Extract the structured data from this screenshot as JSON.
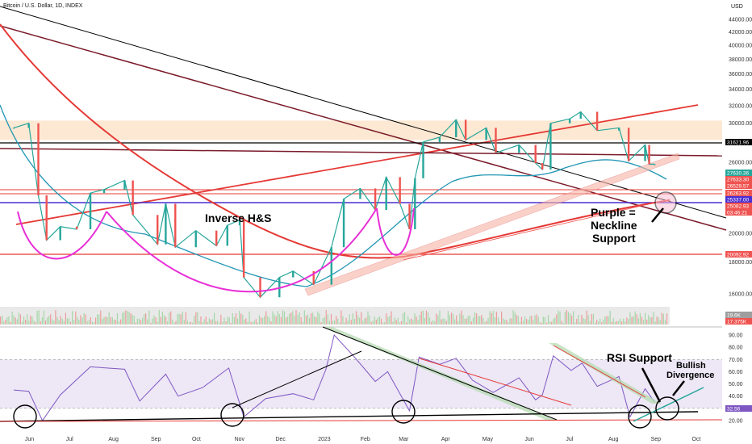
{
  "header": {
    "title": "Bitcoin / U.S. Dollar, 1D, INDEX",
    "currency": "USD"
  },
  "chart_data": {
    "type": "line",
    "title": "Bitcoin / U.S. Dollar, 1D, INDEX",
    "price_ticks": [
      44000,
      42000,
      40000,
      38000,
      36000,
      34000,
      32000,
      30000,
      28000,
      26000,
      24000,
      22000,
      20000,
      18000,
      16000
    ],
    "price_tick_labels": [
      "44000.00",
      "42000.00",
      "40000.00",
      "38000.00",
      "36000.00",
      "34000.00",
      "32000.00",
      "30000.00",
      "28000.00",
      "26000.00",
      "24000.00",
      "22000.00",
      "20000.00",
      "18000.00",
      "16000.00"
    ],
    "rsi_ticks": [
      90,
      80,
      70,
      60,
      50,
      40,
      20
    ],
    "rsi_tick_labels": [
      "90.00",
      "80.00",
      "70.00",
      "60.00",
      "50.00",
      "40.00",
      "20.00"
    ],
    "x_labels": [
      "Jun",
      "Jul",
      "Aug",
      "Sep",
      "Oct",
      "Nov",
      "Dec",
      "2023",
      "Feb",
      "Mar",
      "Apr",
      "May",
      "Jun",
      "Jul",
      "Aug",
      "Sep",
      "Oct"
    ],
    "ylim": [
      14000,
      45500
    ],
    "rsi_ylim": [
      15,
      95
    ],
    "series": [
      {
        "values": [
          {
            "d": "2022-05-25",
            "v": 29500
          },
          {
            "d": "2022-06-05",
            "v": 30000
          },
          {
            "d": "2022-06-12",
            "v": 23000
          },
          {
            "d": "2022-06-18",
            "v": 19500
          },
          {
            "d": "2022-06-28",
            "v": 20500
          },
          {
            "d": "2022-07-10",
            "v": 20300
          },
          {
            "d": "2022-07-20",
            "v": 23200
          },
          {
            "d": "2022-07-30",
            "v": 23500
          },
          {
            "d": "2022-08-14",
            "v": 24300
          },
          {
            "d": "2022-08-20",
            "v": 21400
          },
          {
            "d": "2022-09-07",
            "v": 19200
          },
          {
            "d": "2022-09-13",
            "v": 22300
          },
          {
            "d": "2022-09-20",
            "v": 19000
          },
          {
            "d": "2022-10-05",
            "v": 20200
          },
          {
            "d": "2022-10-20",
            "v": 19100
          },
          {
            "d": "2022-10-28",
            "v": 20600
          },
          {
            "d": "2022-11-06",
            "v": 21000
          },
          {
            "d": "2022-11-09",
            "v": 17000
          },
          {
            "d": "2022-11-21",
            "v": 15800
          },
          {
            "d": "2022-12-05",
            "v": 17000
          },
          {
            "d": "2022-12-15",
            "v": 17400
          },
          {
            "d": "2022-12-30",
            "v": 16550
          },
          {
            "d": "2023-01-12",
            "v": 19000
          },
          {
            "d": "2023-01-21",
            "v": 22700
          },
          {
            "d": "2023-02-02",
            "v": 23600
          },
          {
            "d": "2023-02-13",
            "v": 21800
          },
          {
            "d": "2023-02-21",
            "v": 24600
          },
          {
            "d": "2023-03-03",
            "v": 22300
          },
          {
            "d": "2023-03-10",
            "v": 20300
          },
          {
            "d": "2023-03-14",
            "v": 24500
          },
          {
            "d": "2023-03-20",
            "v": 28000
          },
          {
            "d": "2023-04-01",
            "v": 28500
          },
          {
            "d": "2023-04-13",
            "v": 30400
          },
          {
            "d": "2023-04-20",
            "v": 28200
          },
          {
            "d": "2023-05-05",
            "v": 29500
          },
          {
            "d": "2023-05-12",
            "v": 26900
          },
          {
            "d": "2023-05-29",
            "v": 27700
          },
          {
            "d": "2023-06-10",
            "v": 25900
          },
          {
            "d": "2023-06-15",
            "v": 25300
          },
          {
            "d": "2023-06-21",
            "v": 30000
          },
          {
            "d": "2023-07-05",
            "v": 30500
          },
          {
            "d": "2023-07-13",
            "v": 31300
          },
          {
            "d": "2023-07-25",
            "v": 29200
          },
          {
            "d": "2023-08-10",
            "v": 29500
          },
          {
            "d": "2023-08-17",
            "v": 26100
          },
          {
            "d": "2023-08-29",
            "v": 27700
          },
          {
            "d": "2023-09-01",
            "v": 25800
          },
          {
            "d": "2023-09-05",
            "v": 25800
          }
        ]
      }
    ],
    "rsi_series": [
      {
        "d": "2022-05-25",
        "v": 45
      },
      {
        "d": "2022-06-05",
        "v": 44
      },
      {
        "d": "2022-06-15",
        "v": 20
      },
      {
        "d": "2022-06-28",
        "v": 41
      },
      {
        "d": "2022-07-20",
        "v": 64
      },
      {
        "d": "2022-08-14",
        "v": 62
      },
      {
        "d": "2022-08-25",
        "v": 36
      },
      {
        "d": "2022-09-13",
        "v": 58
      },
      {
        "d": "2022-09-22",
        "v": 40
      },
      {
        "d": "2022-10-10",
        "v": 47
      },
      {
        "d": "2022-10-29",
        "v": 63
      },
      {
        "d": "2022-11-09",
        "v": 23
      },
      {
        "d": "2022-11-25",
        "v": 38
      },
      {
        "d": "2022-12-15",
        "v": 42
      },
      {
        "d": "2022-12-30",
        "v": 37
      },
      {
        "d": "2023-01-08",
        "v": 62
      },
      {
        "d": "2023-01-14",
        "v": 90
      },
      {
        "d": "2023-01-28",
        "v": 73
      },
      {
        "d": "2023-02-13",
        "v": 52
      },
      {
        "d": "2023-02-22",
        "v": 60
      },
      {
        "d": "2023-03-10",
        "v": 28
      },
      {
        "d": "2023-03-17",
        "v": 72
      },
      {
        "d": "2023-04-01",
        "v": 66
      },
      {
        "d": "2023-04-13",
        "v": 71
      },
      {
        "d": "2023-04-25",
        "v": 53
      },
      {
        "d": "2023-05-10",
        "v": 43
      },
      {
        "d": "2023-05-29",
        "v": 55
      },
      {
        "d": "2023-06-10",
        "v": 37
      },
      {
        "d": "2023-06-15",
        "v": 41
      },
      {
        "d": "2023-06-23",
        "v": 73
      },
      {
        "d": "2023-07-06",
        "v": 61
      },
      {
        "d": "2023-07-14",
        "v": 67
      },
      {
        "d": "2023-07-25",
        "v": 48
      },
      {
        "d": "2023-08-10",
        "v": 56
      },
      {
        "d": "2023-08-18",
        "v": 23
      },
      {
        "d": "2023-08-29",
        "v": 46
      },
      {
        "d": "2023-09-05",
        "v": 35
      }
    ],
    "horizontal_levels": [
      {
        "value": 31621.96,
        "label": "31621.96",
        "color": "#000000"
      },
      {
        "value": 27630.36,
        "label": "27630.36",
        "color": "#26a69a"
      },
      {
        "value": 27633.3,
        "label": "27633.30",
        "color": "#ef5350"
      },
      {
        "value": 26529.57,
        "label": "26529.57",
        "color": "#ef5350"
      },
      {
        "value": 26263.92,
        "label": "26263.92",
        "color": "#ef5350"
      },
      {
        "value": 25337.0,
        "label": "25337.00",
        "color": "#4a2ed1"
      },
      {
        "value": 25082.93,
        "label": "25082.93",
        "color": "#ef5350"
      },
      {
        "value": 20092.92,
        "label": "20092.92",
        "color": "#ef5350"
      }
    ],
    "level_extra": {
      "countdown": "03:46:21",
      "vol1": "19.6K",
      "vol2": "17.375K",
      "rsi": "32.56"
    },
    "grid": false
  },
  "annotations": {
    "inverse_hs": "Inverse H&S",
    "purple_1": "Purple =",
    "purple_2": "Neckline",
    "purple_3": "Support",
    "rsi_support": "RSI Support",
    "bullish_1": "Bullish",
    "bullish_2": "Divergence"
  },
  "colors": {
    "price": "#26a69a",
    "ma200": "#e53935",
    "ma50": "#2196b4",
    "neckline": "#7b1fa2",
    "pattern": "#e82fd6",
    "rsi": "#7e57c2"
  }
}
